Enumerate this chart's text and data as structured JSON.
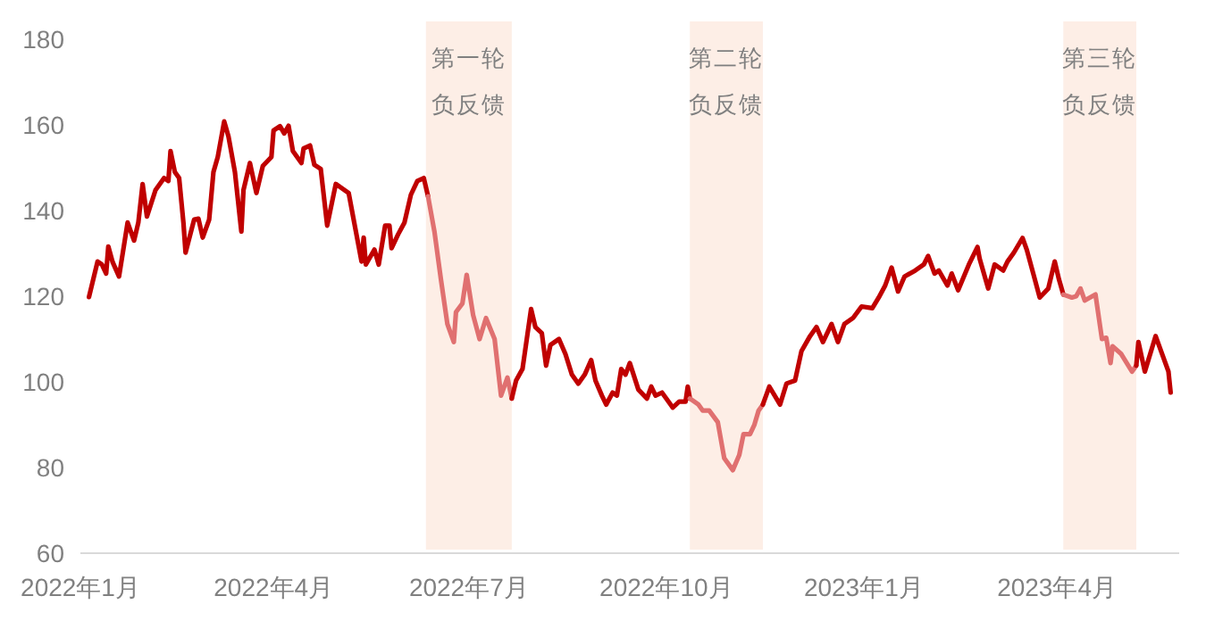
{
  "chart_data": {
    "type": "line",
    "xlim": [
      "2022-01-01",
      "2023-05-28"
    ],
    "ylim": [
      60,
      180
    ],
    "yticks": [
      60,
      80,
      100,
      120,
      140,
      160,
      180
    ],
    "xticks": [
      {
        "value": "2022-01-01",
        "label": "2022年1月"
      },
      {
        "value": "2022-04-01",
        "label": "2022年4月"
      },
      {
        "value": "2022-07-01",
        "label": "2022年7月"
      },
      {
        "value": "2022-10-01",
        "label": "2022年10月"
      },
      {
        "value": "2023-01-01",
        "label": "2023年1月"
      },
      {
        "value": "2023-04-01",
        "label": "2023年4月"
      }
    ],
    "marker": "none",
    "line_style": "solid",
    "bands": [
      {
        "axis": "x",
        "from": "2022-06-11",
        "to": "2022-07-21",
        "label": "第一轮负反馈",
        "color": "#fdeee6"
      },
      {
        "axis": "x",
        "from": "2022-10-12",
        "to": "2022-11-15",
        "label": "第二轮负反馈",
        "color": "#fdeee6"
      },
      {
        "axis": "x",
        "from": "2023-04-04",
        "to": "2023-05-08",
        "label": "第三轮负反馈",
        "color": "#fdeee6"
      }
    ],
    "series": [
      {
        "color": "#c00000",
        "x": [
          "2022-01-05",
          "2022-01-09",
          "2022-01-11",
          "2022-01-13",
          "2022-01-14",
          "2022-01-16",
          "2022-01-19",
          "2022-01-23",
          "2022-01-26",
          "2022-01-28",
          "2022-01-30",
          "2022-02-01",
          "2022-02-05",
          "2022-02-09",
          "2022-02-11",
          "2022-02-12",
          "2022-02-14",
          "2022-02-16",
          "2022-02-18",
          "2022-02-19",
          "2022-02-23",
          "2022-02-25",
          "2022-02-27",
          "2022-03-02",
          "2022-03-04",
          "2022-03-06",
          "2022-03-09",
          "2022-03-11",
          "2022-03-14",
          "2022-03-17",
          "2022-03-18",
          "2022-03-21",
          "2022-03-24",
          "2022-03-27",
          "2022-03-31",
          "2022-04-01",
          "2022-04-04",
          "2022-04-06",
          "2022-04-08",
          "2022-04-10",
          "2022-04-14",
          "2022-04-15",
          "2022-04-18",
          "2022-04-20",
          "2022-04-23",
          "2022-04-26",
          "2022-04-30",
          "2022-05-06",
          "2022-05-12",
          "2022-05-13",
          "2022-05-14",
          "2022-05-18",
          "2022-05-20",
          "2022-05-23",
          "2022-05-25",
          "2022-05-26",
          "2022-05-29",
          "2022-06-01",
          "2022-06-04",
          "2022-06-07",
          "2022-06-10",
          "2022-06-12"
        ],
        "values": [
          119.8,
          128.1,
          127.4,
          125.3,
          131.6,
          128,
          124.6,
          137.2,
          133,
          137.2,
          146.2,
          138.6,
          144.8,
          147.6,
          146.9,
          153.9,
          149,
          147.6,
          137.2,
          130.2,
          137.9,
          138.1,
          133.7,
          137.9,
          149,
          152.5,
          160.8,
          157.3,
          149,
          135.1,
          144.8,
          151.1,
          144.1,
          150.4,
          152.5,
          158.7,
          159.7,
          158,
          159.8,
          153.9,
          151.1,
          154.5,
          155.2,
          150.7,
          149.7,
          136.5,
          146.2,
          144.1,
          128.1,
          133.7,
          127.4,
          130.9,
          127.4,
          136.5,
          136.5,
          131.2,
          134.4,
          137.2,
          143.7,
          146.9,
          147.6,
          143.3
        ]
      },
      {
        "color": "#e07070",
        "x": [
          "2022-06-12",
          "2022-06-15",
          "2022-06-18",
          "2022-06-21",
          "2022-06-24",
          "2022-06-25",
          "2022-06-28",
          "2022-06-30",
          "2022-07-03",
          "2022-07-06",
          "2022-07-09",
          "2022-07-13",
          "2022-07-16",
          "2022-07-19",
          "2022-07-21"
        ],
        "values": [
          143.3,
          135,
          123.9,
          113.5,
          109.3,
          116.3,
          118.3,
          125,
          115.6,
          110,
          114.9,
          110,
          96.8,
          101,
          96.1
        ]
      },
      {
        "color": "#c00000",
        "x": [
          "2022-07-21",
          "2022-07-23",
          "2022-07-26",
          "2022-07-28",
          "2022-07-30",
          "2022-08-01",
          "2022-08-04",
          "2022-08-06",
          "2022-08-08",
          "2022-08-12",
          "2022-08-15",
          "2022-08-18",
          "2022-08-21",
          "2022-08-24",
          "2022-08-27",
          "2022-08-29",
          "2022-09-01",
          "2022-09-03",
          "2022-09-06",
          "2022-09-08",
          "2022-09-10",
          "2022-09-12",
          "2022-09-14",
          "2022-09-18",
          "2022-09-22",
          "2022-09-24",
          "2022-09-26",
          "2022-09-29",
          "2022-10-02",
          "2022-10-04",
          "2022-10-07",
          "2022-10-10",
          "2022-10-11",
          "2022-10-12"
        ],
        "values": [
          96.1,
          100.3,
          103,
          110,
          117,
          112.8,
          111.4,
          103.8,
          108.6,
          110,
          106.5,
          101.7,
          99.6,
          101.7,
          105.1,
          100.3,
          96.8,
          94.7,
          97.5,
          96.8,
          103,
          101.7,
          104.4,
          98.2,
          96.1,
          98.9,
          96.8,
          97.5,
          95.4,
          94,
          95.4,
          95.4,
          98.9,
          96.1
        ]
      },
      {
        "color": "#e07070",
        "x": [
          "2022-10-12",
          "2022-10-16",
          "2022-10-18",
          "2022-10-21",
          "2022-10-25",
          "2022-10-28",
          "2022-11-01",
          "2022-11-04",
          "2022-11-06",
          "2022-11-09",
          "2022-11-11",
          "2022-11-13",
          "2022-11-15"
        ],
        "values": [
          96.1,
          94.7,
          93.3,
          93.3,
          90.6,
          82.2,
          79.4,
          82.9,
          87.8,
          87.8,
          89.9,
          93.3,
          94.7
        ]
      },
      {
        "color": "#c00000",
        "x": [
          "2022-11-15",
          "2022-11-18",
          "2022-11-23",
          "2022-11-26",
          "2022-11-30",
          "2022-12-03",
          "2022-12-07",
          "2022-12-10",
          "2022-12-13",
          "2022-12-17",
          "2022-12-20",
          "2022-12-23",
          "2022-12-27",
          "2022-12-31",
          "2023-01-05",
          "2023-01-08",
          "2023-01-11",
          "2023-01-14",
          "2023-01-17",
          "2023-01-20",
          "2023-01-25",
          "2023-01-29",
          "2023-01-31",
          "2023-02-03",
          "2023-02-05",
          "2023-02-09",
          "2023-02-11",
          "2023-02-14",
          "2023-02-19",
          "2023-02-23",
          "2023-02-24",
          "2023-02-28",
          "2023-03-03",
          "2023-03-07",
          "2023-03-09",
          "2023-03-12",
          "2023-03-16",
          "2023-03-18",
          "2023-03-21",
          "2023-03-24",
          "2023-03-28",
          "2023-03-31",
          "2023-04-02",
          "2023-04-04"
        ],
        "values": [
          94.7,
          98.9,
          94.7,
          99.6,
          100.3,
          107.2,
          110.7,
          112.8,
          109.3,
          113.5,
          109.3,
          113.5,
          114.9,
          117.6,
          117.2,
          119.7,
          122.5,
          126.7,
          121.1,
          124.6,
          126,
          127.4,
          129.4,
          125.3,
          126,
          122.5,
          125.3,
          121.4,
          127.4,
          131.5,
          128.8,
          121.8,
          127.4,
          126,
          128.1,
          130.2,
          133.6,
          130.8,
          125.3,
          119.7,
          121.8,
          128.1,
          123.9,
          120.4
        ]
      },
      {
        "color": "#e07070",
        "x": [
          "2023-04-04",
          "2023-04-08",
          "2023-04-10",
          "2023-04-12",
          "2023-04-14",
          "2023-04-19",
          "2023-04-22",
          "2023-04-24",
          "2023-04-26",
          "2023-04-27",
          "2023-05-01",
          "2023-05-06",
          "2023-05-08"
        ],
        "values": [
          120.4,
          119.7,
          120,
          121.8,
          119,
          120.4,
          110,
          110.3,
          104.4,
          108.3,
          106.5,
          102.4,
          103.8
        ]
      },
      {
        "color": "#c00000",
        "x": [
          "2023-05-08",
          "2023-05-09",
          "2023-05-12",
          "2023-05-17",
          "2023-05-23",
          "2023-05-24"
        ],
        "values": [
          103.8,
          109.3,
          102.4,
          110.7,
          102.4,
          97.5
        ]
      }
    ]
  }
}
